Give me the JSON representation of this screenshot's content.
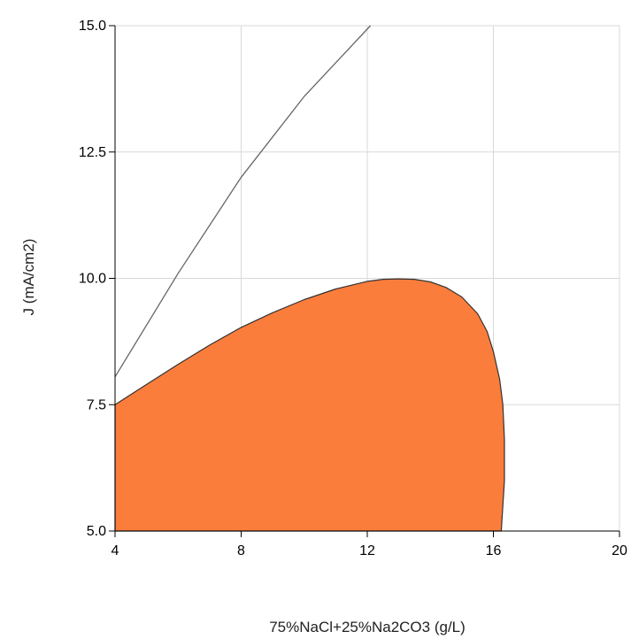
{
  "chart_data": {
    "type": "area",
    "xlabel": "75%NaCl+25%Na2CO3 (g/L)",
    "ylabel": "J (mA/cm2)",
    "xlim": [
      4,
      20
    ],
    "ylim": [
      5,
      15
    ],
    "x_ticks": [
      "4",
      "8",
      "12",
      "16",
      "20"
    ],
    "y_ticks": [
      "5.0",
      "7.5",
      "10.0",
      "12.5",
      "15.0"
    ],
    "grid": true,
    "colors": {
      "fill": "#fb7d3c",
      "outline": "#333333",
      "line": "#666666",
      "grid": "#d9d9d9"
    },
    "series": [
      {
        "kind": "line",
        "points": [
          [
            4,
            8.05
          ],
          [
            6,
            10.1
          ],
          [
            8,
            12.0
          ],
          [
            10,
            13.6
          ],
          [
            12.1,
            15.0
          ]
        ]
      },
      {
        "kind": "filled-region",
        "points": [
          [
            4,
            5.0
          ],
          [
            4,
            7.5
          ],
          [
            5,
            7.9
          ],
          [
            6,
            8.3
          ],
          [
            7,
            8.68
          ],
          [
            8,
            9.03
          ],
          [
            9,
            9.32
          ],
          [
            10,
            9.58
          ],
          [
            11,
            9.79
          ],
          [
            12,
            9.94
          ],
          [
            12.5,
            9.98
          ],
          [
            13,
            9.99
          ],
          [
            13.5,
            9.98
          ],
          [
            14,
            9.93
          ],
          [
            14.5,
            9.82
          ],
          [
            15,
            9.63
          ],
          [
            15.5,
            9.3
          ],
          [
            15.8,
            8.95
          ],
          [
            16,
            8.55
          ],
          [
            16.2,
            8.0
          ],
          [
            16.3,
            7.5
          ],
          [
            16.35,
            6.8
          ],
          [
            16.35,
            6.0
          ],
          [
            16.3,
            5.5
          ],
          [
            16.25,
            5.0
          ]
        ]
      }
    ]
  }
}
